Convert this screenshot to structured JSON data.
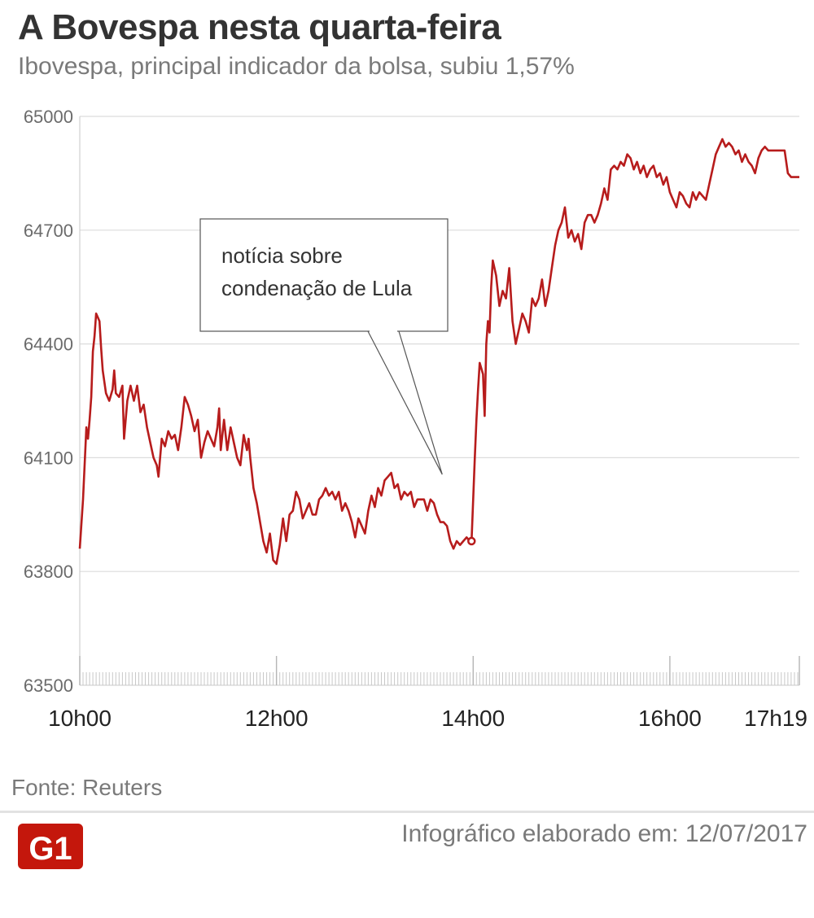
{
  "header": {
    "title": "A Bovespa nesta quarta-feira",
    "subtitle": "Ibovespa, principal indicador da bolsa, subiu 1,57%"
  },
  "chart_data": {
    "type": "line",
    "title": "A Bovespa nesta quarta-feira",
    "subtitle": "Ibovespa, principal indicador da bolsa, subiu 1,57%",
    "xlabel": "",
    "ylabel": "",
    "x_unit": "minutes since 10h00",
    "xlim": [
      0,
      439
    ],
    "ylim": [
      63500,
      65000
    ],
    "y_ticks": [
      65000,
      64700,
      64400,
      64100,
      63800,
      63500
    ],
    "x_ticks": [
      {
        "x": 0,
        "label": "10h00"
      },
      {
        "x": 120,
        "label": "12h00"
      },
      {
        "x": 240,
        "label": "14h00"
      },
      {
        "x": 360,
        "label": "16h00"
      },
      {
        "x": 439,
        "label": "17h19"
      }
    ],
    "grid": "horizontal",
    "line_color": "#b71c1c",
    "series": [
      {
        "name": "",
        "values": [
          [
            0,
            63860
          ],
          [
            2,
            63990
          ],
          [
            4,
            64180
          ],
          [
            5,
            64150
          ],
          [
            6,
            64200
          ],
          [
            7,
            64260
          ],
          [
            8,
            64380
          ],
          [
            9,
            64420
          ],
          [
            10,
            64480
          ],
          [
            11,
            64470
          ],
          [
            12,
            64460
          ],
          [
            13,
            64390
          ],
          [
            14,
            64330
          ],
          [
            16,
            64270
          ],
          [
            18,
            64250
          ],
          [
            20,
            64280
          ],
          [
            21,
            64330
          ],
          [
            22,
            64270
          ],
          [
            24,
            64260
          ],
          [
            26,
            64290
          ],
          [
            27,
            64150
          ],
          [
            29,
            64250
          ],
          [
            31,
            64290
          ],
          [
            33,
            64250
          ],
          [
            35,
            64290
          ],
          [
            37,
            64220
          ],
          [
            39,
            64240
          ],
          [
            41,
            64180
          ],
          [
            43,
            64140
          ],
          [
            45,
            64100
          ],
          [
            47,
            64080
          ],
          [
            48,
            64050
          ],
          [
            50,
            64150
          ],
          [
            52,
            64130
          ],
          [
            54,
            64170
          ],
          [
            56,
            64150
          ],
          [
            58,
            64160
          ],
          [
            60,
            64120
          ],
          [
            62,
            64180
          ],
          [
            64,
            64260
          ],
          [
            66,
            64240
          ],
          [
            68,
            64210
          ],
          [
            70,
            64170
          ],
          [
            72,
            64200
          ],
          [
            74,
            64100
          ],
          [
            76,
            64140
          ],
          [
            78,
            64170
          ],
          [
            80,
            64150
          ],
          [
            82,
            64130
          ],
          [
            84,
            64180
          ],
          [
            85,
            64230
          ],
          [
            86,
            64120
          ],
          [
            88,
            64200
          ],
          [
            90,
            64120
          ],
          [
            92,
            64180
          ],
          [
            94,
            64140
          ],
          [
            96,
            64100
          ],
          [
            98,
            64080
          ],
          [
            100,
            64160
          ],
          [
            102,
            64120
          ],
          [
            103,
            64150
          ],
          [
            104,
            64100
          ],
          [
            106,
            64020
          ],
          [
            108,
            63980
          ],
          [
            110,
            63930
          ],
          [
            112,
            63880
          ],
          [
            114,
            63850
          ],
          [
            116,
            63900
          ],
          [
            118,
            63830
          ],
          [
            120,
            63820
          ],
          [
            122,
            63870
          ],
          [
            124,
            63940
          ],
          [
            126,
            63880
          ],
          [
            128,
            63950
          ],
          [
            130,
            63960
          ],
          [
            132,
            64010
          ],
          [
            134,
            63990
          ],
          [
            136,
            63940
          ],
          [
            138,
            63960
          ],
          [
            140,
            63980
          ],
          [
            142,
            63950
          ],
          [
            144,
            63950
          ],
          [
            146,
            63990
          ],
          [
            148,
            64000
          ],
          [
            150,
            64020
          ],
          [
            152,
            64000
          ],
          [
            154,
            64010
          ],
          [
            156,
            63990
          ],
          [
            158,
            64010
          ],
          [
            160,
            63960
          ],
          [
            162,
            63980
          ],
          [
            164,
            63960
          ],
          [
            166,
            63930
          ],
          [
            168,
            63890
          ],
          [
            170,
            63940
          ],
          [
            172,
            63920
          ],
          [
            174,
            63900
          ],
          [
            176,
            63960
          ],
          [
            178,
            64000
          ],
          [
            180,
            63970
          ],
          [
            182,
            64020
          ],
          [
            184,
            64000
          ],
          [
            186,
            64040
          ],
          [
            188,
            64050
          ],
          [
            190,
            64060
          ],
          [
            192,
            64020
          ],
          [
            194,
            64030
          ],
          [
            196,
            63990
          ],
          [
            198,
            64010
          ],
          [
            200,
            64000
          ],
          [
            202,
            64010
          ],
          [
            204,
            63970
          ],
          [
            206,
            63990
          ],
          [
            208,
            63990
          ],
          [
            210,
            63990
          ],
          [
            212,
            63960
          ],
          [
            214,
            63990
          ],
          [
            216,
            63980
          ],
          [
            218,
            63950
          ],
          [
            220,
            63930
          ],
          [
            222,
            63930
          ],
          [
            224,
            63920
          ],
          [
            226,
            63880
          ],
          [
            228,
            63860
          ],
          [
            230,
            63880
          ],
          [
            232,
            63870
          ],
          [
            234,
            63880
          ],
          [
            236,
            63890
          ],
          [
            238,
            63880
          ],
          [
            239,
            63880
          ],
          [
            240,
            63990
          ],
          [
            241,
            64100
          ],
          [
            242,
            64200
          ],
          [
            243,
            64280
          ],
          [
            244,
            64350
          ],
          [
            246,
            64320
          ],
          [
            247,
            64210
          ],
          [
            248,
            64400
          ],
          [
            249,
            64460
          ],
          [
            250,
            64430
          ],
          [
            251,
            64550
          ],
          [
            252,
            64620
          ],
          [
            254,
            64580
          ],
          [
            256,
            64500
          ],
          [
            258,
            64540
          ],
          [
            260,
            64520
          ],
          [
            262,
            64600
          ],
          [
            264,
            64460
          ],
          [
            266,
            64400
          ],
          [
            268,
            64440
          ],
          [
            270,
            64480
          ],
          [
            272,
            64460
          ],
          [
            274,
            64430
          ],
          [
            276,
            64520
          ],
          [
            278,
            64500
          ],
          [
            280,
            64520
          ],
          [
            282,
            64570
          ],
          [
            284,
            64500
          ],
          [
            286,
            64540
          ],
          [
            288,
            64600
          ],
          [
            290,
            64660
          ],
          [
            292,
            64700
          ],
          [
            294,
            64720
          ],
          [
            296,
            64760
          ],
          [
            298,
            64680
          ],
          [
            300,
            64700
          ],
          [
            302,
            64670
          ],
          [
            304,
            64690
          ],
          [
            306,
            64650
          ],
          [
            308,
            64720
          ],
          [
            310,
            64740
          ],
          [
            312,
            64740
          ],
          [
            314,
            64720
          ],
          [
            316,
            64740
          ],
          [
            318,
            64770
          ],
          [
            320,
            64810
          ],
          [
            322,
            64780
          ],
          [
            324,
            64860
          ],
          [
            326,
            64870
          ],
          [
            328,
            64860
          ],
          [
            330,
            64880
          ],
          [
            332,
            64870
          ],
          [
            334,
            64900
          ],
          [
            336,
            64890
          ],
          [
            338,
            64860
          ],
          [
            340,
            64880
          ],
          [
            342,
            64850
          ],
          [
            344,
            64870
          ],
          [
            346,
            64840
          ],
          [
            348,
            64860
          ],
          [
            350,
            64870
          ],
          [
            352,
            64840
          ],
          [
            354,
            64850
          ],
          [
            356,
            64820
          ],
          [
            358,
            64840
          ],
          [
            360,
            64800
          ],
          [
            362,
            64780
          ],
          [
            364,
            64760
          ],
          [
            366,
            64800
          ],
          [
            368,
            64790
          ],
          [
            370,
            64770
          ],
          [
            372,
            64760
          ],
          [
            374,
            64800
          ],
          [
            376,
            64780
          ],
          [
            378,
            64800
          ],
          [
            380,
            64790
          ],
          [
            382,
            64780
          ],
          [
            384,
            64820
          ],
          [
            386,
            64860
          ],
          [
            388,
            64900
          ],
          [
            390,
            64920
          ],
          [
            392,
            64940
          ],
          [
            394,
            64920
          ],
          [
            396,
            64930
          ],
          [
            398,
            64920
          ],
          [
            400,
            64900
          ],
          [
            402,
            64910
          ],
          [
            404,
            64880
          ],
          [
            406,
            64900
          ],
          [
            408,
            64880
          ],
          [
            410,
            64870
          ],
          [
            412,
            64850
          ],
          [
            414,
            64890
          ],
          [
            416,
            64910
          ],
          [
            418,
            64920
          ],
          [
            420,
            64910
          ],
          [
            422,
            64910
          ],
          [
            424,
            64910
          ],
          [
            426,
            64910
          ],
          [
            428,
            64910
          ],
          [
            430,
            64910
          ],
          [
            432,
            64850
          ],
          [
            434,
            64840
          ],
          [
            436,
            64840
          ],
          [
            439,
            64840
          ]
        ]
      }
    ],
    "annotations": [
      {
        "text_lines": [
          "notícia sobre",
          "condenação de Lula"
        ],
        "target_x": 239,
        "target_y": 63880
      }
    ]
  },
  "footer": {
    "source": "Fonte: Reuters",
    "logo_text": "G1",
    "logo_color": "#c4170c",
    "credit": "Infográfico elaborado em: 12/07/2017"
  }
}
